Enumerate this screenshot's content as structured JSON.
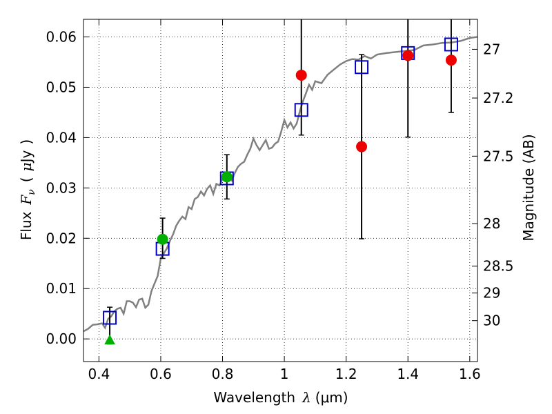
{
  "chart_data": {
    "type": "scatter",
    "x_axis": {
      "label": "Wavelength",
      "symbol": "λ",
      "unit": "(μm)",
      "lim": [
        0.35,
        1.625
      ],
      "ticks": [
        0.4,
        0.6,
        0.8,
        1.0,
        1.2,
        1.4,
        1.6
      ],
      "tick_labels": [
        "0.4",
        "0.6",
        "0.8",
        "1",
        "1.2",
        "1.4",
        "1.6"
      ]
    },
    "y_axis": {
      "label": "Flux",
      "symbol": "F",
      "subscript": "ν",
      "unit_open": "(",
      "unit_mu": "μ",
      "unit_rest": "Jy",
      "unit_close": ")",
      "lim": [
        -0.0045,
        0.0635
      ],
      "ticks": [
        0.0,
        0.01,
        0.02,
        0.03,
        0.04,
        0.05,
        0.06
      ],
      "tick_labels": [
        "0.00",
        "0.01",
        "0.02",
        "0.03",
        "0.04",
        "0.05",
        "0.06"
      ]
    },
    "y2_axis": {
      "label": "Magnitude (AB)",
      "ticks": [
        27,
        27.2,
        27.5,
        28,
        28.5,
        29,
        30
      ],
      "tick_labels": [
        "27",
        "27.2",
        "27.5",
        "28",
        "28.5",
        "29",
        "30"
      ]
    },
    "grid": true,
    "colors": {
      "model": "#808080",
      "model_points": "#0000cc",
      "detections": "#00b000",
      "nondetections": "#ee0000",
      "upper_limit": "#00b000",
      "errorbar": "#000000"
    },
    "model_spectrum": {
      "x": [
        0.35,
        0.365,
        0.38,
        0.395,
        0.41,
        0.42,
        0.43,
        0.44,
        0.45,
        0.46,
        0.47,
        0.48,
        0.49,
        0.5,
        0.51,
        0.52,
        0.53,
        0.54,
        0.55,
        0.56,
        0.57,
        0.58,
        0.59,
        0.6,
        0.61,
        0.62,
        0.63,
        0.64,
        0.65,
        0.66,
        0.67,
        0.68,
        0.69,
        0.7,
        0.71,
        0.72,
        0.73,
        0.74,
        0.75,
        0.76,
        0.77,
        0.78,
        0.79,
        0.8,
        0.81,
        0.82,
        0.83,
        0.84,
        0.85,
        0.86,
        0.87,
        0.88,
        0.89,
        0.9,
        0.91,
        0.92,
        0.93,
        0.94,
        0.95,
        0.96,
        0.97,
        0.98,
        0.99,
        1.0,
        1.01,
        1.02,
        1.03,
        1.04,
        1.05,
        1.06,
        1.07,
        1.08,
        1.09,
        1.1,
        1.12,
        1.14,
        1.16,
        1.18,
        1.2,
        1.22,
        1.24,
        1.26,
        1.28,
        1.3,
        1.33,
        1.36,
        1.39,
        1.42,
        1.45,
        1.48,
        1.51,
        1.54,
        1.57,
        1.6,
        1.625
      ],
      "y": [
        0.0015,
        0.002,
        0.0028,
        0.0029,
        0.0031,
        0.0022,
        0.004,
        0.0045,
        0.0055,
        0.006,
        0.0062,
        0.005,
        0.0075,
        0.0075,
        0.0072,
        0.0063,
        0.0078,
        0.008,
        0.0062,
        0.0068,
        0.0095,
        0.011,
        0.0125,
        0.016,
        0.017,
        0.018,
        0.0195,
        0.0208,
        0.0225,
        0.0235,
        0.0243,
        0.0238,
        0.0262,
        0.0258,
        0.0278,
        0.0282,
        0.0293,
        0.0285,
        0.0298,
        0.0305,
        0.0288,
        0.0308,
        0.0305,
        0.0318,
        0.032,
        0.0325,
        0.0315,
        0.033,
        0.0342,
        0.0348,
        0.0352,
        0.0366,
        0.0378,
        0.0398,
        0.0385,
        0.0375,
        0.0385,
        0.0395,
        0.0378,
        0.038,
        0.0388,
        0.0392,
        0.0412,
        0.0435,
        0.042,
        0.043,
        0.0418,
        0.0428,
        0.0452,
        0.0472,
        0.0488,
        0.0505,
        0.0495,
        0.0512,
        0.0508,
        0.0525,
        0.0535,
        0.0545,
        0.0552,
        0.0556,
        0.0555,
        0.0562,
        0.0557,
        0.0565,
        0.0568,
        0.057,
        0.0572,
        0.0574,
        0.0583,
        0.0585,
        0.0588,
        0.0589,
        0.0592,
        0.0598,
        0.06
      ]
    },
    "model_photometry": [
      {
        "x": 0.435,
        "y": 0.0042
      },
      {
        "x": 0.606,
        "y": 0.0179
      },
      {
        "x": 0.814,
        "y": 0.0319
      },
      {
        "x": 1.055,
        "y": 0.0455
      },
      {
        "x": 1.25,
        "y": 0.054
      },
      {
        "x": 1.4,
        "y": 0.0568
      },
      {
        "x": 1.54,
        "y": 0.0585
      }
    ],
    "observed_detections": [
      {
        "x": 0.606,
        "y": 0.0198,
        "err_lo": 0.0038,
        "err_hi": 0.0042
      },
      {
        "x": 0.814,
        "y": 0.0322,
        "err_lo": 0.0044,
        "err_hi": 0.0044
      }
    ],
    "observed_nondetections": [
      {
        "x": 1.055,
        "y": 0.0524,
        "err_lo": 0.0119,
        "err_hi": 0.0156
      },
      {
        "x": 1.25,
        "y": 0.0382,
        "err_lo": 0.0183,
        "err_hi": 0.0183
      },
      {
        "x": 1.4,
        "y": 0.0563,
        "err_lo": 0.0162,
        "err_hi": 0.0102
      },
      {
        "x": 1.54,
        "y": 0.0554,
        "err_lo": 0.0104,
        "err_hi": 0.0104
      }
    ],
    "upper_limit": {
      "x": 0.435,
      "y": -0.0002,
      "err_lo": 0.0008,
      "err_hi": 0.0065
    }
  }
}
